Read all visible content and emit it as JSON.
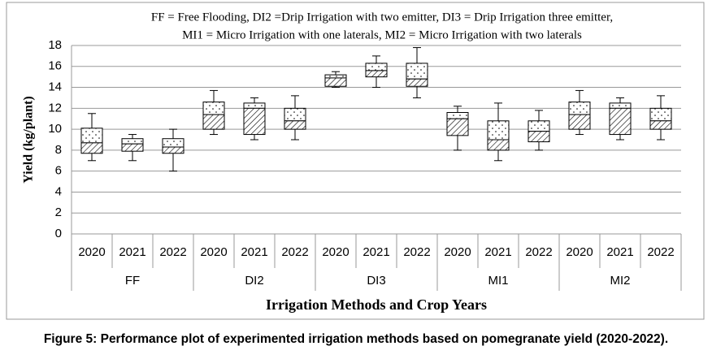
{
  "chart_data": {
    "type": "box",
    "annotation": [
      "FF = Free Flooding, DI2 =Drip Irrigation with two emitter, DI3 = Drip Irrigation three emitter,",
      "MI1 = Micro Irrigation with one laterals,  MI2 =  Micro Irrigation with two laterals"
    ],
    "y_label": "Yield (kg/plant)",
    "x_label": "Irrigation Methods and Crop Years",
    "caption": "Figure 5: Performance plot of experimented irrigation methods based on pomegranate  yield (2020-2022).",
    "categories": [
      "2020",
      "2021",
      "2022",
      "2020",
      "2021",
      "2022",
      "2020",
      "2021",
      "2022",
      "2020",
      "2021",
      "2022",
      "2020",
      "2021",
      "2022"
    ],
    "groups": [
      "FF",
      "DI2",
      "DI3",
      "MI1",
      "MI2"
    ],
    "boxes": [
      {
        "min": 7.0,
        "q1": 7.7,
        "median": 8.7,
        "q3": 10.1,
        "max": 11.5
      },
      {
        "min": 7.0,
        "q1": 7.9,
        "median": 8.6,
        "q3": 9.1,
        "max": 9.5
      },
      {
        "min": 6.0,
        "q1": 7.7,
        "median": 8.3,
        "q3": 9.1,
        "max": 10.0
      },
      {
        "min": 9.5,
        "q1": 10.0,
        "median": 11.4,
        "q3": 12.6,
        "max": 13.7
      },
      {
        "min": 9.0,
        "q1": 9.5,
        "median": 12.0,
        "q3": 12.5,
        "max": 13.0
      },
      {
        "min": 9.0,
        "q1": 10.0,
        "median": 10.8,
        "q3": 12.0,
        "max": 13.2
      },
      {
        "min": 14.0,
        "q1": 14.1,
        "median": 14.9,
        "q3": 15.2,
        "max": 15.5
      },
      {
        "min": 14.0,
        "q1": 15.0,
        "median": 15.6,
        "q3": 16.3,
        "max": 17.0
      },
      {
        "min": 13.0,
        "q1": 14.1,
        "median": 14.8,
        "q3": 16.3,
        "max": 17.8
      },
      {
        "min": 8.0,
        "q1": 9.4,
        "median": 11.0,
        "q3": 11.6,
        "max": 12.2
      },
      {
        "min": 7.0,
        "q1": 8.0,
        "median": 9.0,
        "q3": 10.8,
        "max": 12.5
      },
      {
        "min": 8.0,
        "q1": 8.8,
        "median": 9.8,
        "q3": 10.8,
        "max": 11.8
      },
      {
        "min": 9.5,
        "q1": 10.0,
        "median": 11.4,
        "q3": 12.6,
        "max": 13.7
      },
      {
        "min": 9.0,
        "q1": 9.5,
        "median": 12.0,
        "q3": 12.5,
        "max": 13.0
      },
      {
        "min": 9.0,
        "q1": 10.0,
        "median": 10.8,
        "q3": 12.0,
        "max": 13.2
      }
    ],
    "ylim": [
      0,
      18
    ],
    "yticks": [
      0,
      2,
      4,
      6,
      8,
      10,
      12,
      14,
      16,
      18
    ],
    "grid": true
  }
}
